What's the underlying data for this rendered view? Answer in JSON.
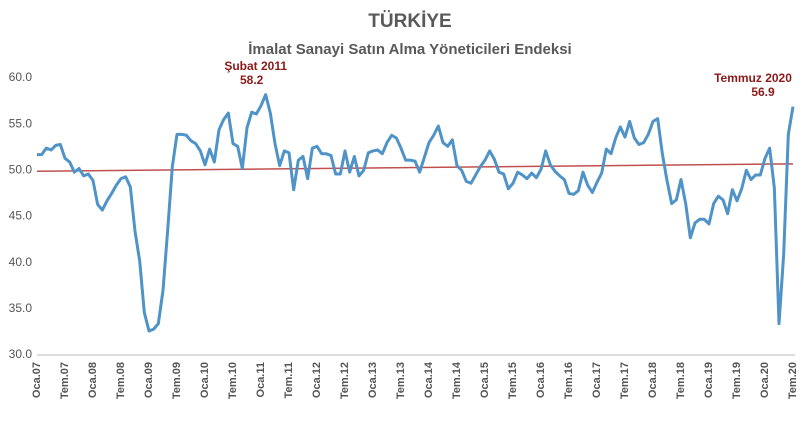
{
  "chart_data": {
    "type": "line",
    "title": "TÜRKİYE",
    "subtitle": "İmalat Sanayi Satın Alma Yöneticileri Endeksi",
    "categories": [
      "Oca.07",
      null,
      null,
      null,
      null,
      null,
      "Tem.07",
      null,
      null,
      null,
      null,
      null,
      "Oca.08",
      null,
      null,
      null,
      null,
      null,
      "Tem.08",
      null,
      null,
      null,
      null,
      null,
      "Oca.09",
      null,
      null,
      null,
      null,
      null,
      "Tem.09",
      null,
      null,
      null,
      null,
      null,
      "Oca.10",
      null,
      null,
      null,
      null,
      null,
      "Tem.10",
      null,
      null,
      null,
      null,
      null,
      "Oca.11",
      null,
      null,
      null,
      null,
      null,
      "Tem.11",
      null,
      null,
      null,
      null,
      null,
      "Oca.12",
      null,
      null,
      null,
      null,
      null,
      "Tem.12",
      null,
      null,
      null,
      null,
      null,
      "Oca.13",
      null,
      null,
      null,
      null,
      null,
      "Tem.13",
      null,
      null,
      null,
      null,
      null,
      "Oca.14",
      null,
      null,
      null,
      null,
      null,
      "Tem.14",
      null,
      null,
      null,
      null,
      null,
      "Oca.15",
      null,
      null,
      null,
      null,
      null,
      "Tem.15",
      null,
      null,
      null,
      null,
      null,
      "Oca.16",
      null,
      null,
      null,
      null,
      null,
      "Tem.16",
      null,
      null,
      null,
      null,
      null,
      "Oca.17",
      null,
      null,
      null,
      null,
      null,
      "Tem.17",
      null,
      null,
      null,
      null,
      null,
      "Oca.18",
      null,
      null,
      null,
      null,
      null,
      "Tem.18",
      null,
      null,
      null,
      null,
      null,
      "Oca.19",
      null,
      null,
      null,
      null,
      null,
      "Tem.19",
      null,
      null,
      null,
      null,
      null,
      "Oca.20",
      null,
      null,
      null,
      null,
      null,
      "Tem.20"
    ],
    "series": [
      {
        "color": "#4f93c7",
        "values": [
          51.7,
          51.7,
          52.4,
          52.2,
          52.7,
          52.8,
          51.3,
          50.9,
          49.8,
          50.2,
          49.4,
          49.6,
          48.9,
          46.3,
          45.7,
          46.7,
          47.5,
          48.4,
          49.1,
          49.3,
          48.2,
          43.4,
          40.2,
          34.6,
          32.6,
          32.8,
          33.4,
          37.0,
          43.5,
          50.4,
          53.9,
          53.9,
          53.8,
          53.2,
          52.9,
          52.1,
          50.6,
          52.3,
          50.9,
          54.4,
          55.5,
          56.2,
          52.9,
          52.6,
          50.2,
          54.6,
          56.3,
          56.1,
          57.0,
          58.2,
          56.2,
          52.9,
          50.5,
          52.1,
          51.9,
          47.9,
          51.1,
          51.5,
          49.1,
          52.4,
          52.6,
          51.8,
          51.8,
          51.6,
          49.6,
          49.6,
          52.1,
          49.8,
          51.5,
          49.4,
          50.0,
          51.9,
          52.1,
          52.2,
          51.8,
          53.0,
          53.8,
          53.5,
          52.4,
          51.1,
          51.1,
          51.0,
          49.8,
          51.4,
          53.0,
          53.8,
          54.8,
          53.0,
          52.6,
          53.3,
          50.5,
          50.0,
          48.8,
          48.6,
          49.5,
          50.4,
          51.1,
          52.1,
          51.2,
          49.8,
          49.6,
          48.0,
          48.6,
          49.8,
          49.5,
          49.1,
          49.7,
          49.2,
          50.1,
          52.1,
          50.6,
          49.9,
          49.4,
          49.0,
          47.5,
          47.4,
          47.8,
          49.8,
          48.4,
          47.6,
          48.7,
          49.7,
          52.3,
          51.8,
          53.5,
          54.7,
          53.6,
          55.3,
          53.5,
          52.8,
          53.0,
          53.9,
          55.3,
          55.6,
          51.8,
          48.9,
          46.4,
          46.8,
          49.0,
          46.4,
          42.7,
          44.3,
          44.7,
          44.7,
          44.2,
          46.4,
          47.2,
          46.8,
          45.3,
          47.9,
          46.7,
          48.0,
          50.0,
          49.0,
          49.5,
          49.5,
          51.3,
          52.4,
          48.1,
          33.4,
          40.9,
          53.9,
          56.9
        ]
      }
    ],
    "trend_line": {
      "values": [
        49.9,
        50.7
      ],
      "color": "#c0504d"
    },
    "annotations": [
      {
        "text": "Şubat 2011",
        "value": 58.2
      },
      {
        "text": "Temmuz 2020",
        "value": 56.9
      }
    ],
    "ylim": [
      30,
      60
    ],
    "yticks": [
      {
        "value": 30,
        "label": "30.0"
      },
      {
        "value": 35,
        "label": "35.0"
      },
      {
        "value": 40,
        "label": "40.0"
      },
      {
        "value": 45,
        "label": "45.0"
      },
      {
        "value": 50,
        "label": "50.0"
      },
      {
        "value": 55,
        "label": "55.0"
      },
      {
        "value": 60,
        "label": "60.0"
      }
    ],
    "grid": false
  }
}
